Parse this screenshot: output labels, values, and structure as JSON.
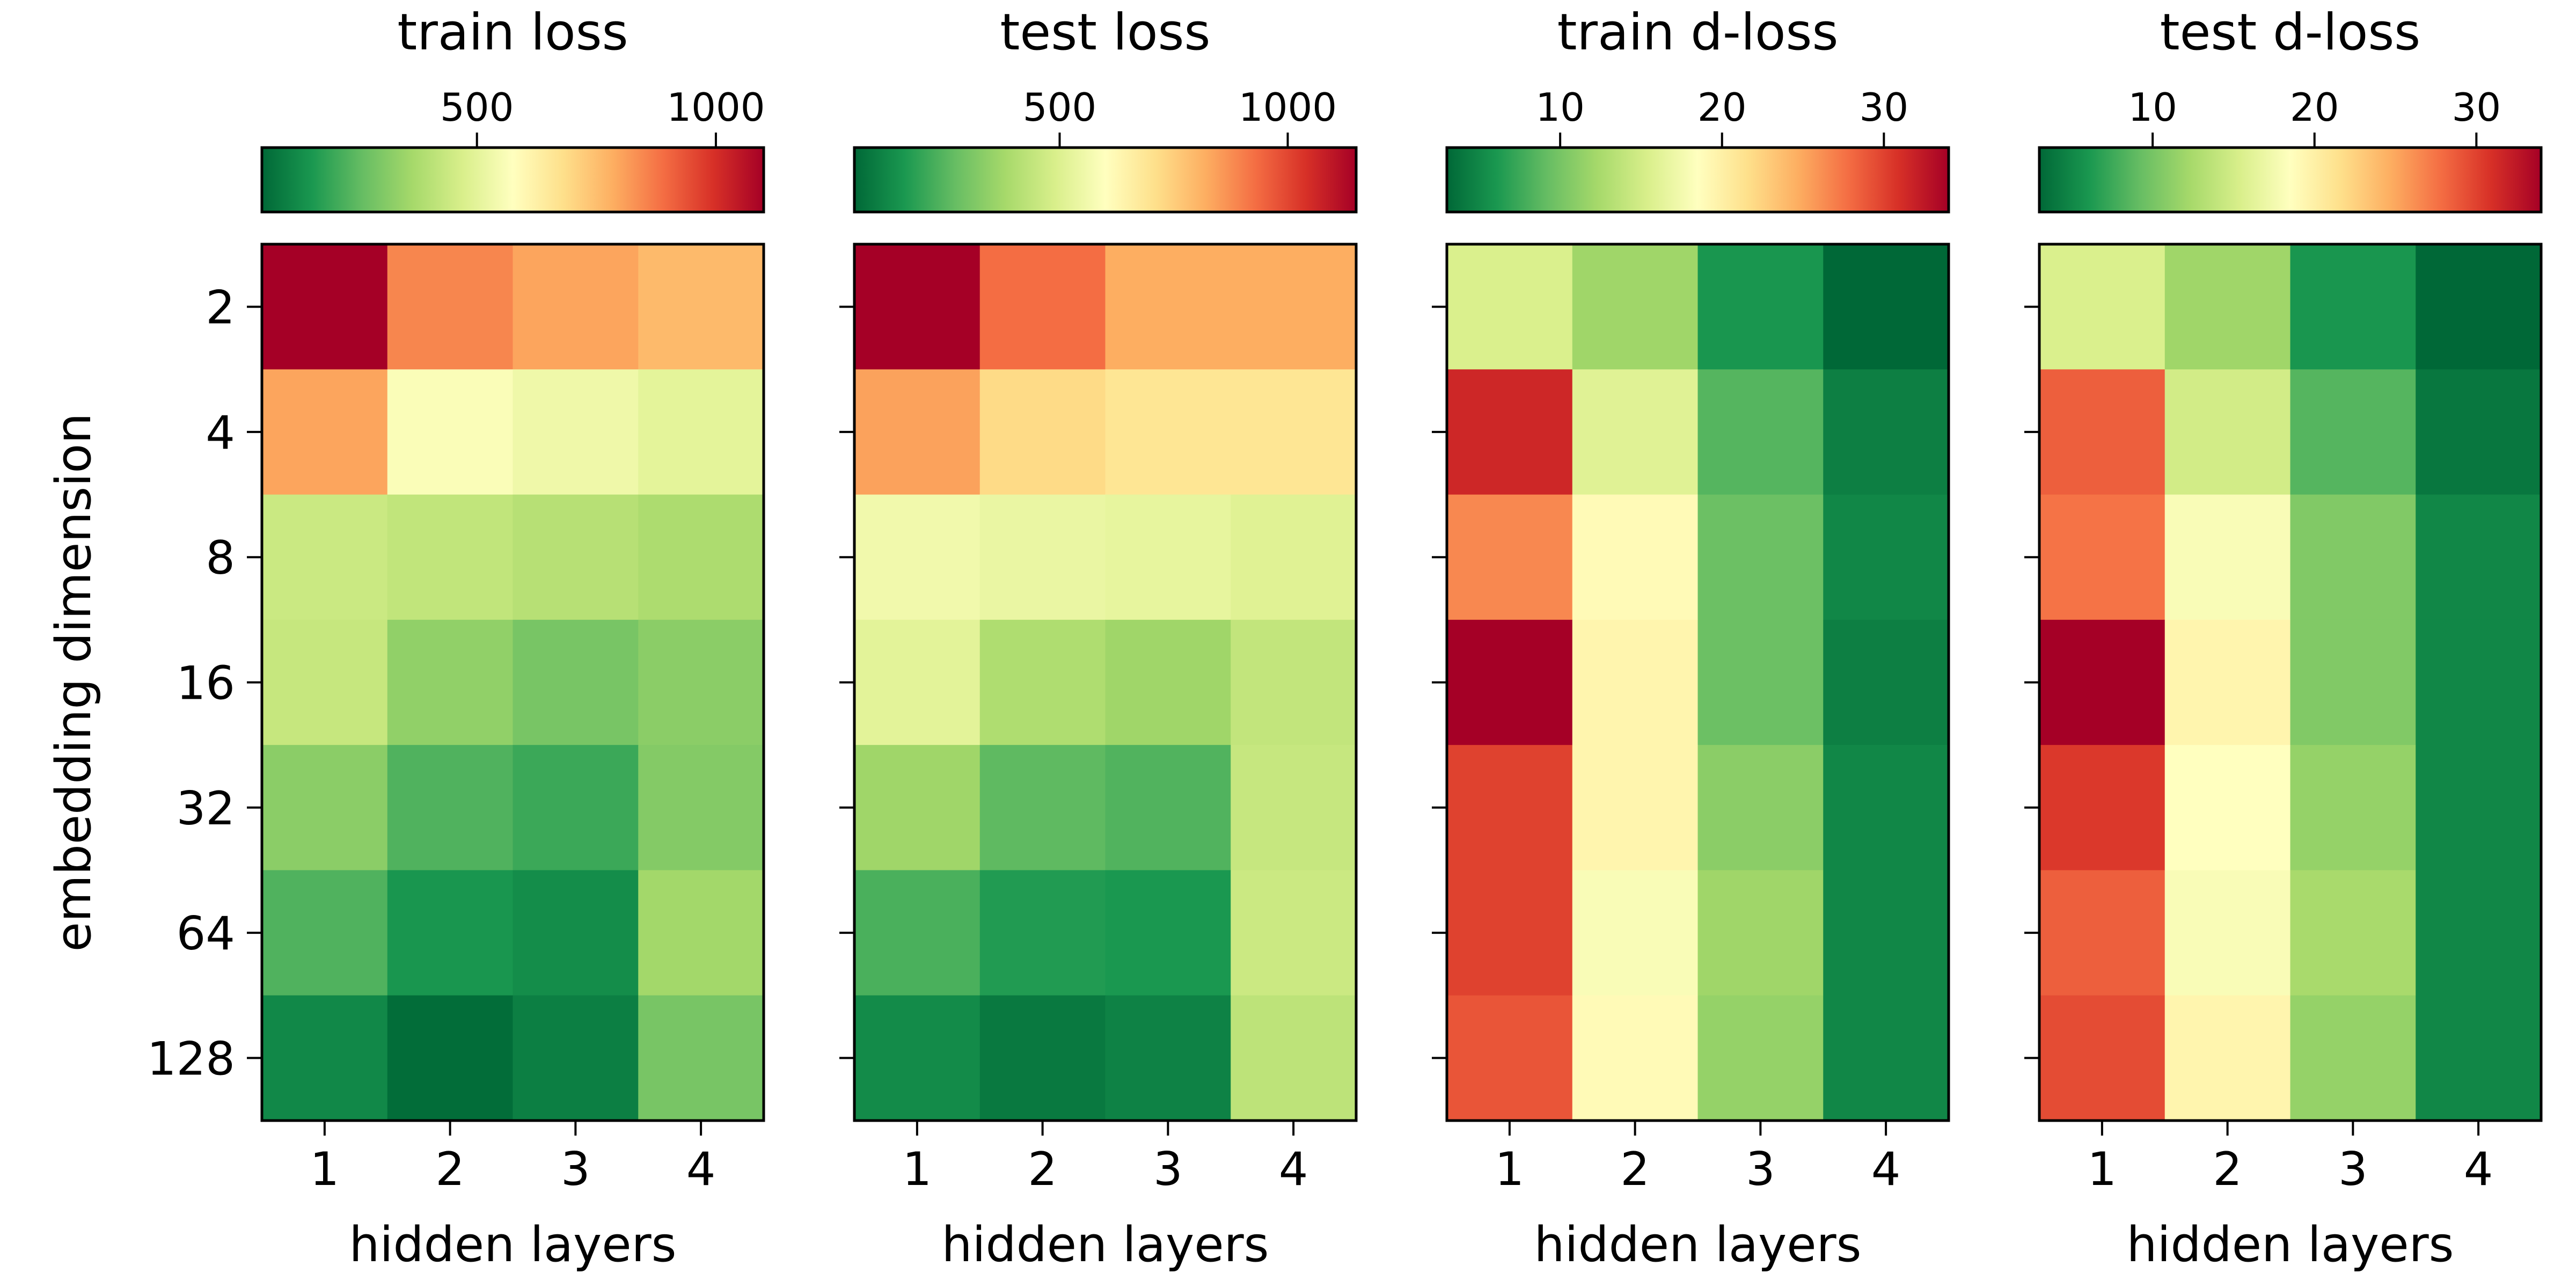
{
  "chart_data": [
    {
      "type": "heatmap",
      "title": "train loss",
      "xlabel": "hidden layers",
      "ylabel": "embedding dimension",
      "x_categories": [
        "1",
        "2",
        "3",
        "4"
      ],
      "y_categories": [
        "2",
        "4",
        "8",
        "16",
        "32",
        "64",
        "128"
      ],
      "colorbar": {
        "range": [
          50,
          1100
        ],
        "ticks": [
          500,
          1000
        ],
        "tick_labels": [
          "500",
          "1000"
        ]
      },
      "values": [
        [
          1100,
          850,
          800,
          760
        ],
        [
          800,
          560,
          530,
          500
        ],
        [
          440,
          420,
          400,
          380
        ],
        [
          430,
          330,
          290,
          320
        ],
        [
          320,
          230,
          200,
          310
        ],
        [
          230,
          150,
          130,
          360
        ],
        [
          120,
          60,
          100,
          290
        ]
      ]
    },
    {
      "type": "heatmap",
      "title": "test loss",
      "xlabel": "hidden layers",
      "ylabel": "",
      "x_categories": [
        "1",
        "2",
        "3",
        "4"
      ],
      "y_categories": [
        "2",
        "4",
        "8",
        "16",
        "32",
        "64",
        "128"
      ],
      "colorbar": {
        "range": [
          50,
          1150
        ],
        "ticks": [
          500,
          1000
        ],
        "tick_labels": [
          "500",
          "1000"
        ]
      },
      "values": [
        [
          1150,
          930,
          820,
          820
        ],
        [
          840,
          720,
          690,
          690
        ],
        [
          560,
          540,
          530,
          510
        ],
        [
          520,
          400,
          370,
          440
        ],
        [
          370,
          260,
          240,
          450
        ],
        [
          230,
          170,
          160,
          460
        ],
        [
          130,
          90,
          110,
          430
        ]
      ]
    },
    {
      "type": "heatmap",
      "title": "train d-loss",
      "xlabel": "hidden layers",
      "ylabel": "",
      "x_categories": [
        "1",
        "2",
        "3",
        "4"
      ],
      "y_categories": [
        "2",
        "4",
        "8",
        "16",
        "32",
        "64",
        "128"
      ],
      "colorbar": {
        "range": [
          3,
          34
        ],
        "ticks": [
          10,
          20,
          30
        ],
        "tick_labels": [
          "10",
          "20",
          "30"
        ]
      },
      "values": [
        [
          15.5,
          12,
          6,
          3
        ],
        [
          31.5,
          16,
          8.5,
          4.5
        ],
        [
          26.5,
          19,
          9.5,
          5
        ],
        [
          34,
          19.5,
          9.5,
          4.5
        ],
        [
          30,
          19.5,
          11,
          5
        ],
        [
          30,
          18,
          12,
          5
        ],
        [
          29,
          19,
          11.5,
          5
        ]
      ]
    },
    {
      "type": "heatmap",
      "title": "test d-loss",
      "xlabel": "hidden layers",
      "ylabel": "",
      "x_categories": [
        "1",
        "2",
        "3",
        "4"
      ],
      "y_categories": [
        "2",
        "4",
        "8",
        "16",
        "32",
        "64",
        "128"
      ],
      "colorbar": {
        "range": [
          3,
          34
        ],
        "ticks": [
          10,
          20,
          30
        ],
        "tick_labels": [
          "10",
          "20",
          "30"
        ]
      },
      "values": [
        [
          15.5,
          12,
          6,
          3
        ],
        [
          28.5,
          15,
          8.5,
          4
        ],
        [
          27.5,
          18,
          10.5,
          5
        ],
        [
          34,
          19.5,
          10.5,
          5
        ],
        [
          30.5,
          18.5,
          11.5,
          5
        ],
        [
          28.5,
          18,
          12.5,
          5
        ],
        [
          29.5,
          19.5,
          11.5,
          5
        ]
      ]
    }
  ]
}
